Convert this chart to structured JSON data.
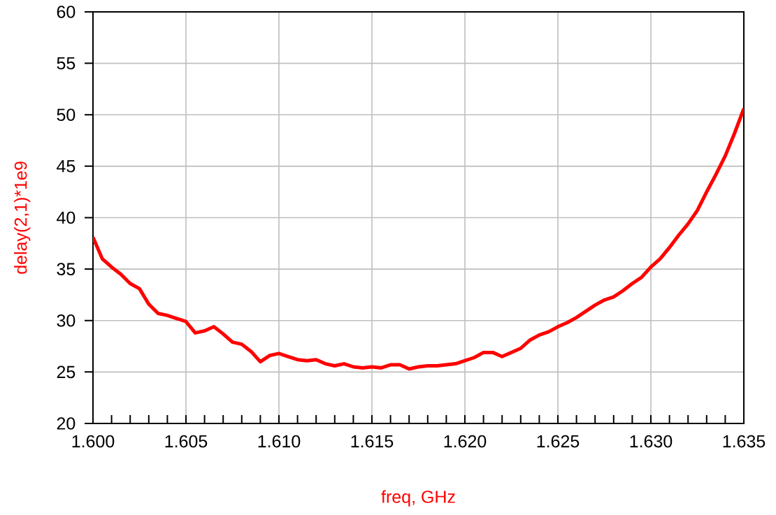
{
  "chart_data": {
    "type": "line",
    "xlabel": "freq, GHz",
    "ylabel": "delay(2,1)*1e9",
    "x": [
      1.6,
      1.6005,
      1.601,
      1.6015,
      1.602,
      1.6025,
      1.603,
      1.6035,
      1.604,
      1.6045,
      1.605,
      1.6055,
      1.606,
      1.6065,
      1.607,
      1.6075,
      1.608,
      1.6085,
      1.609,
      1.6095,
      1.61,
      1.6105,
      1.611,
      1.6115,
      1.612,
      1.6125,
      1.613,
      1.6135,
      1.614,
      1.6145,
      1.615,
      1.6155,
      1.616,
      1.6165,
      1.617,
      1.6175,
      1.618,
      1.6185,
      1.619,
      1.6195,
      1.62,
      1.6205,
      1.621,
      1.6215,
      1.622,
      1.6225,
      1.623,
      1.6235,
      1.624,
      1.6245,
      1.625,
      1.6255,
      1.626,
      1.6265,
      1.627,
      1.6275,
      1.628,
      1.6285,
      1.629,
      1.6295,
      1.63,
      1.6305,
      1.631,
      1.6315,
      1.632,
      1.6325,
      1.633,
      1.6335,
      1.634,
      1.6345,
      1.635
    ],
    "series": [
      {
        "color": "#ff0000",
        "values": [
          38.1,
          36.0,
          35.2,
          34.5,
          33.6,
          33.1,
          31.6,
          30.7,
          30.5,
          30.2,
          29.9,
          28.8,
          29.0,
          29.4,
          28.7,
          27.9,
          27.7,
          27.0,
          26.0,
          26.6,
          26.8,
          26.5,
          26.2,
          26.1,
          26.2,
          25.8,
          25.6,
          25.8,
          25.5,
          25.4,
          25.5,
          25.4,
          25.7,
          25.7,
          25.3,
          25.5,
          25.6,
          25.6,
          25.7,
          25.8,
          26.1,
          26.4,
          26.9,
          26.9,
          26.5,
          26.9,
          27.3,
          28.1,
          28.6,
          28.9,
          29.4,
          29.8,
          30.3,
          30.9,
          31.5,
          32.0,
          32.3,
          32.9,
          33.6,
          34.2,
          35.2,
          36.0,
          37.1,
          38.3,
          39.4,
          40.7,
          42.5,
          44.2,
          46.0,
          48.2,
          50.6
        ]
      }
    ],
    "xlim": [
      1.6,
      1.635
    ],
    "ylim": [
      20,
      60
    ],
    "xticks": [
      {
        "value": 1.6,
        "label": "1.600"
      },
      {
        "value": 1.605,
        "label": "1.605"
      },
      {
        "value": 1.61,
        "label": "1.610"
      },
      {
        "value": 1.615,
        "label": "1.615"
      },
      {
        "value": 1.62,
        "label": "1.620"
      },
      {
        "value": 1.625,
        "label": "1.625"
      },
      {
        "value": 1.63,
        "label": "1.630"
      },
      {
        "value": 1.635,
        "label": "1.635"
      }
    ],
    "yticks": [
      20,
      25,
      30,
      35,
      40,
      45,
      50,
      55,
      60
    ],
    "grid": true,
    "marker": "none",
    "line_style": "solid"
  }
}
